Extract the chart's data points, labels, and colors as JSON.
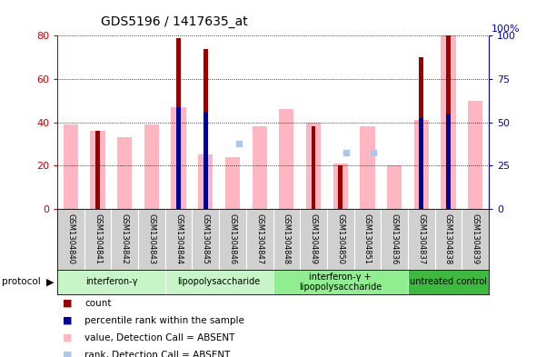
{
  "title": "GDS5196 / 1417635_at",
  "samples": [
    "GSM1304840",
    "GSM1304841",
    "GSM1304842",
    "GSM1304843",
    "GSM1304844",
    "GSM1304845",
    "GSM1304846",
    "GSM1304847",
    "GSM1304848",
    "GSM1304849",
    "GSM1304850",
    "GSM1304851",
    "GSM1304836",
    "GSM1304837",
    "GSM1304838",
    "GSM1304839"
  ],
  "count_values": [
    0,
    36,
    0,
    0,
    79,
    74,
    0,
    0,
    0,
    38,
    20,
    0,
    0,
    70,
    80,
    0
  ],
  "rank_values": [
    null,
    null,
    null,
    null,
    47,
    45,
    null,
    null,
    null,
    null,
    null,
    null,
    null,
    42,
    44,
    null
  ],
  "pink_bar_values": [
    39,
    36,
    33,
    39,
    47,
    25,
    24,
    38,
    46,
    40,
    21,
    38,
    20,
    41,
    80,
    50
  ],
  "blue_square_values": [
    null,
    null,
    null,
    null,
    null,
    null,
    30,
    null,
    null,
    null,
    26,
    26,
    null,
    null,
    null,
    null
  ],
  "protocols": [
    {
      "label": "interferon-γ",
      "start": 0,
      "end": 4
    },
    {
      "label": "lipopolysaccharide",
      "start": 4,
      "end": 8
    },
    {
      "label": "interferon-γ +\nlipopolysaccharide",
      "start": 8,
      "end": 13
    },
    {
      "label": "untreated control",
      "start": 13,
      "end": 16
    }
  ],
  "proto_colors": [
    "#c8f5c8",
    "#c8f5c8",
    "#90EE90",
    "#3dba3d"
  ],
  "ylim_left": [
    0,
    80
  ],
  "ylim_right": [
    0,
    100
  ],
  "yticks_left": [
    0,
    20,
    40,
    60,
    80
  ],
  "yticks_right": [
    0,
    25,
    50,
    75,
    100
  ],
  "left_tick_color": "#cc0000",
  "right_tick_color": "#0000cc",
  "count_color": "#990000",
  "rank_color": "#000099",
  "pink_color": "#FFB6C1",
  "blue_sq_color": "#aec6e8",
  "plot_bg_color": "#ffffff",
  "label_bg_color": "#d0d0d0",
  "grid_color": "black"
}
